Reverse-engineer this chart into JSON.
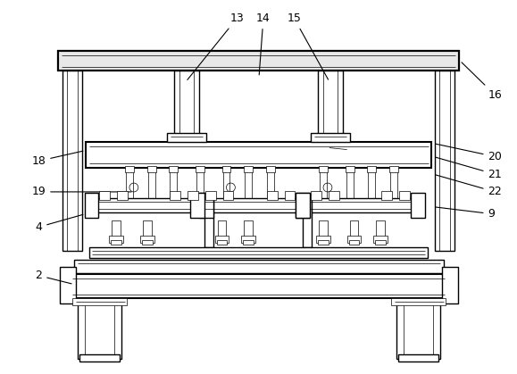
{
  "bg_color": "#ffffff",
  "lc": "#000000",
  "lw": 1.0,
  "tlw": 0.5,
  "thw": 1.5,
  "fig_width": 5.79,
  "fig_height": 4.19
}
